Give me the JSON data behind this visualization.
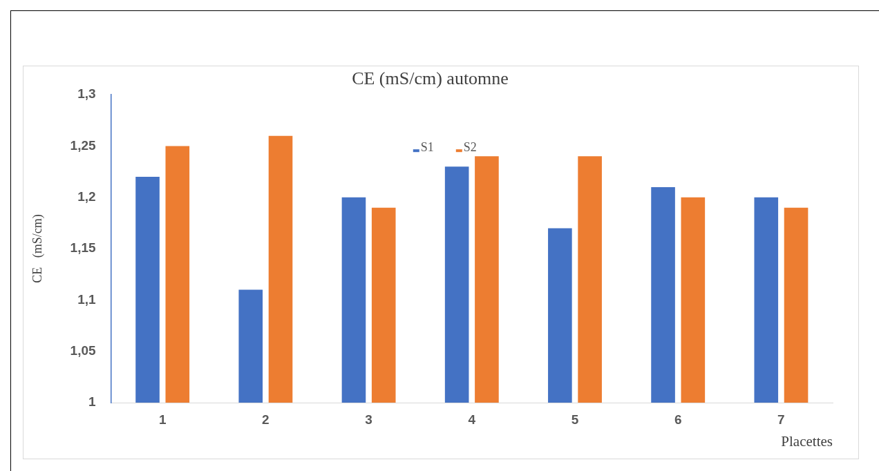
{
  "chart_data": {
    "type": "bar",
    "title": "CE (mS/cm) automne",
    "xlabel": "Placettes",
    "ylabel": "CE   (mS/cm)",
    "categories": [
      "1",
      "2",
      "3",
      "4",
      "5",
      "6",
      "7"
    ],
    "series": [
      {
        "name": "S1",
        "color": "#4472c4",
        "values": [
          1.22,
          1.11,
          1.2,
          1.23,
          1.17,
          1.21,
          1.2
        ]
      },
      {
        "name": "S2",
        "color": "#ed7d31",
        "values": [
          1.25,
          1.26,
          1.19,
          1.24,
          1.24,
          1.2,
          1.19
        ]
      }
    ],
    "ylim": [
      1,
      1.3
    ],
    "yticks": [
      1,
      {
        "value": 1.05,
        "label": "1,05"
      },
      {
        "value": 1.1,
        "label": "1,1"
      },
      {
        "value": 1.15,
        "label": "1,15"
      },
      {
        "value": 1.2,
        "label": "1,2"
      },
      {
        "value": 1.25,
        "label": "1,25"
      },
      {
        "value": 1.3,
        "label": "1,3"
      }
    ],
    "grid": false,
    "legend": "top"
  }
}
